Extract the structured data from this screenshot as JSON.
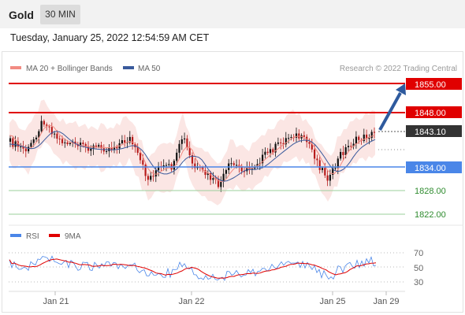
{
  "header": {
    "asset": "Gold",
    "timeframe": "30 MIN"
  },
  "datetime": "Tuesday, January 25, 2022 12:54:59 AM CET",
  "legend": {
    "bollinger": {
      "label": "MA 20 + Bollinger Bands",
      "color": "#f28b82"
    },
    "ma50": {
      "label": "MA 50",
      "color": "#3a5a9c"
    }
  },
  "copyright": "Research © 2022 Trading Central",
  "levels": {
    "r2": "1855.00",
    "r1": "1848.00",
    "current": "1843.10",
    "s1": "1834.00",
    "s2": "1828.00",
    "s3": "1822.00"
  },
  "rsi_legend": {
    "rsi": "RSI",
    "ma9": "9MA"
  },
  "rsi_axis": [
    "70",
    "50",
    "30"
  ],
  "x_axis": [
    "Jan 21",
    "Jan 22",
    "Jan 25",
    "Jan 29"
  ],
  "colors": {
    "resistance": "#e00000",
    "support": "#4a86e8",
    "support_minor": "#7cb87c",
    "candle_up": "#111111",
    "candle_down": "#b71c1c",
    "band": "#fbe3e1",
    "arrow": "#2e5a9e",
    "current_bg": "#333333"
  },
  "chart_data": {
    "type": "candlestick",
    "ylim": [
      1818,
      1860
    ],
    "forecast": {
      "from": 1843.1,
      "to": 1855.0,
      "direction": "up"
    },
    "rsi": {
      "levels": [
        70,
        50,
        30
      ]
    }
  }
}
